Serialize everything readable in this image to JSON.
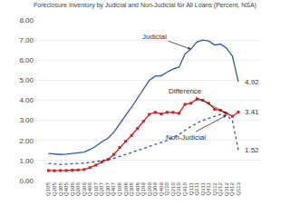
{
  "chart_data": {
    "type": "line",
    "title": "Foreclosure Inventory by Judicial and Non-Judicial for All Loans (Percent, NSA)",
    "categories": [
      "Q105",
      "Q205",
      "Q305",
      "Q405",
      "Q106",
      "Q206",
      "Q306",
      "Q406",
      "Q107",
      "Q207",
      "Q307",
      "Q407",
      "Q108",
      "Q208",
      "Q308",
      "Q408",
      "Q109",
      "Q209",
      "Q309",
      "Q409",
      "Q110",
      "Q210",
      "Q310",
      "Q410",
      "Q111",
      "Q211",
      "Q311",
      "Q411",
      "Q112",
      "Q212",
      "Q312",
      "Q412",
      "Q113"
    ],
    "series": [
      {
        "name": "Judicial",
        "color": "#3355aa",
        "line_style": "solid",
        "values": [
          1.35,
          1.32,
          1.3,
          1.32,
          1.35,
          1.38,
          1.42,
          1.55,
          1.72,
          1.93,
          2.1,
          2.4,
          2.85,
          3.25,
          3.65,
          4.1,
          4.55,
          5.0,
          5.2,
          5.22,
          5.4,
          5.55,
          5.65,
          6.3,
          6.55,
          6.9,
          7.0,
          6.95,
          6.75,
          6.8,
          6.6,
          6.2,
          4.92
        ]
      },
      {
        "name": "Non-Judicial",
        "color": "#3355aa",
        "line_style": "dotted",
        "values": [
          0.85,
          0.83,
          0.8,
          0.82,
          0.83,
          0.85,
          0.87,
          0.9,
          0.95,
          1.0,
          1.05,
          1.1,
          1.2,
          1.3,
          1.4,
          1.5,
          1.6,
          1.7,
          1.8,
          1.9,
          2.0,
          2.15,
          2.3,
          2.5,
          2.7,
          2.85,
          3.0,
          3.1,
          3.2,
          3.3,
          3.25,
          3.0,
          1.52
        ]
      },
      {
        "name": "Difference",
        "color": "#cc2222",
        "line_style": "solid",
        "marker": "square",
        "values": [
          0.5,
          0.49,
          0.5,
          0.5,
          0.52,
          0.53,
          0.55,
          0.65,
          0.77,
          0.93,
          1.05,
          1.3,
          1.65,
          1.95,
          2.25,
          2.6,
          2.95,
          3.3,
          3.4,
          3.32,
          3.4,
          3.4,
          3.35,
          3.8,
          3.85,
          4.05,
          4.0,
          3.85,
          3.55,
          3.5,
          3.35,
          3.2,
          3.41
        ]
      }
    ],
    "annotations": [
      {
        "text": "Judicial",
        "x": "Q111",
        "y": 6.55
      },
      {
        "text": "Difference",
        "x": "Q312",
        "y": 3.35
      },
      {
        "text": "Non-Judicial",
        "x": "Q312",
        "y": 3.25
      },
      {
        "text": "4.92",
        "x": "Q113",
        "y": 4.92
      },
      {
        "text": "3.41",
        "x": "Q113",
        "y": 3.41
      },
      {
        "text": "1.52",
        "x": "Q113",
        "y": 1.52
      }
    ],
    "ylim": [
      0.0,
      8.0
    ],
    "yticks": [
      {
        "value": 0,
        "label": "0.00"
      },
      {
        "value": 1,
        "label": "1.00"
      },
      {
        "value": 2,
        "label": "2.00"
      },
      {
        "value": 3,
        "label": "3.00"
      },
      {
        "value": 4,
        "label": "4.00"
      },
      {
        "value": 5,
        "label": "5.00"
      },
      {
        "value": 6,
        "label": "6.00"
      },
      {
        "value": 7,
        "label": "7.00"
      },
      {
        "value": 8,
        "label": "8.00"
      }
    ],
    "grid": true
  }
}
